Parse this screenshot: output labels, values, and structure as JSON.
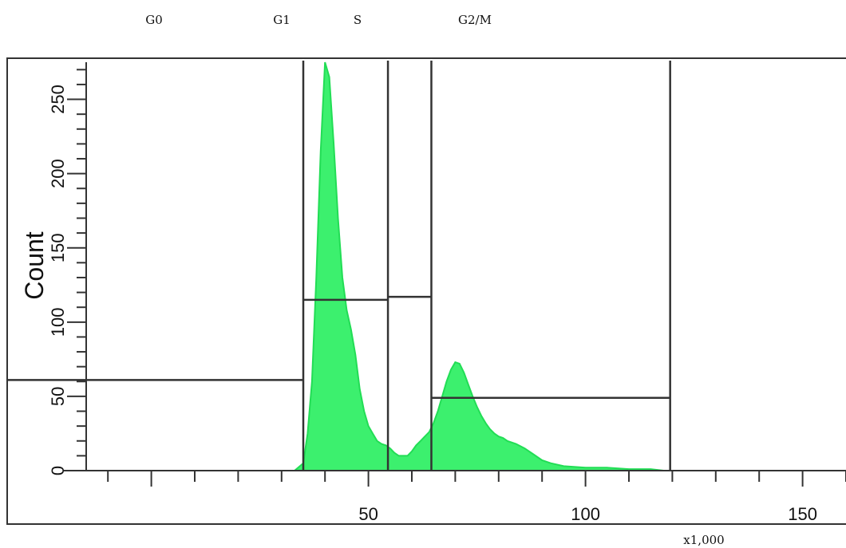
{
  "chart_data": {
    "type": "area",
    "title": "",
    "xlabel": "",
    "ylabel": "Count",
    "x_multiplier_label": "x1,000",
    "xlim": [
      -15,
      160
    ],
    "ylim": [
      0,
      275
    ],
    "xticks": [
      50,
      100,
      150
    ],
    "yticks": [
      0,
      50,
      100,
      150,
      200,
      250
    ],
    "fill_color": "#3cf06e",
    "line_color": "#22dd55",
    "gate_color": "#333333",
    "series": [
      {
        "x": [
          33,
          35,
          36,
          37,
          38,
          39,
          40,
          41,
          42,
          43,
          44,
          45,
          46,
          47,
          48,
          49,
          50,
          51,
          52,
          53,
          54,
          55,
          56,
          57,
          58,
          59,
          60,
          61,
          62,
          63,
          64,
          65,
          66,
          67,
          68,
          69,
          70,
          71,
          72,
          73,
          74,
          75,
          76,
          77,
          78,
          79,
          80,
          81,
          82,
          84,
          86,
          88,
          90,
          92,
          95,
          100,
          105,
          110,
          115,
          118
        ],
        "values": [
          0,
          5,
          25,
          60,
          130,
          215,
          275,
          265,
          220,
          170,
          130,
          108,
          95,
          78,
          55,
          40,
          30,
          25,
          20,
          18,
          17,
          15,
          12,
          10,
          10,
          10,
          13,
          17,
          20,
          23,
          26,
          32,
          40,
          50,
          60,
          68,
          73,
          72,
          66,
          58,
          50,
          43,
          37,
          32,
          28,
          25,
          23,
          22,
          20,
          18,
          15,
          11,
          7,
          5,
          3,
          2,
          2,
          1,
          1,
          0
        ]
      }
    ],
    "gates": [
      {
        "label": "G0",
        "x_start": -15,
        "x_end": 35,
        "level": 61
      },
      {
        "label": "G1",
        "x_start": 35,
        "x_end": 54.5,
        "level": 115
      },
      {
        "label": "S",
        "x_start": 54.5,
        "x_end": 64.5,
        "level": 117
      },
      {
        "label": "G2/M",
        "x_start": 64.5,
        "x_end": 119.5,
        "level": 49
      }
    ]
  }
}
